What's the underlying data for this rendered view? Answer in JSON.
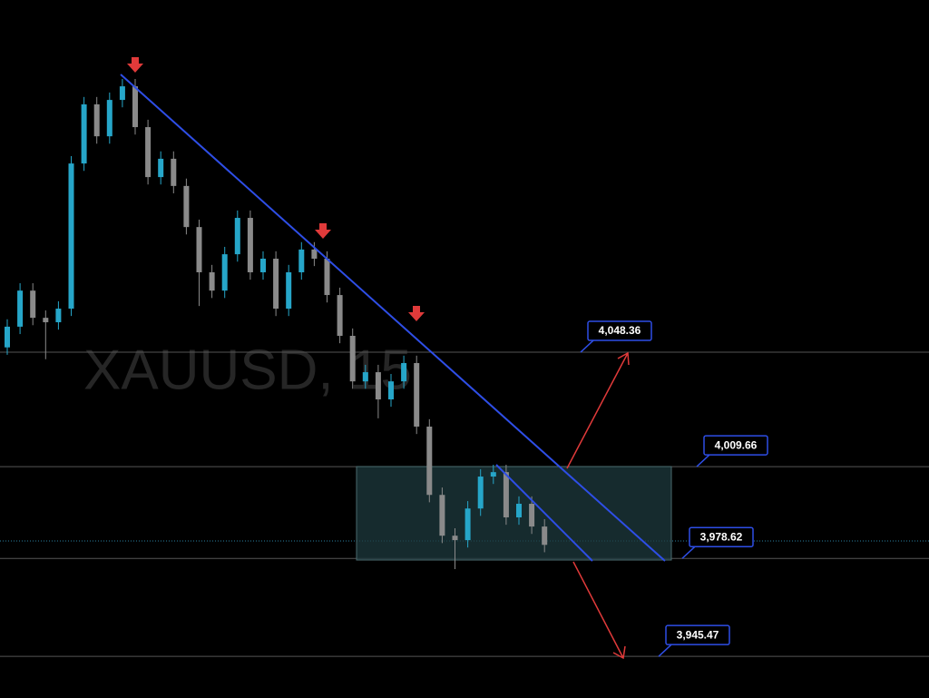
{
  "chart_data": {
    "type": "candlestick",
    "watermark": "XAUUSD, 15",
    "up_color": "#26a6c9",
    "down_color": "#8a8a8a",
    "ylim": [
      3931.4,
      4167.5
    ],
    "open": [
      4050.0,
      4057.0,
      4069.2,
      4060.0,
      4058.5,
      4063.1,
      4112.2,
      4132.2,
      4121.4,
      4133.7,
      4138.3,
      4124.5,
      4107.6,
      4113.8,
      4104.6,
      4090.7,
      4075.4,
      4069.2,
      4081.5,
      4093.8,
      4075.4,
      4080.0,
      4063.1,
      4075.4,
      4083.1,
      4080.0,
      4067.7,
      4053.9,
      4038.5,
      4041.6,
      4032.4,
      4038.5,
      4044.7,
      4023.2,
      4000.1,
      3986.3,
      3984.8,
      3995.5,
      4006.3,
      4007.8,
      3992.5,
      3997.1,
      3989.4
    ],
    "high": [
      4059.5,
      4071.7,
      4071.7,
      4062.5,
      4065.6,
      4114.7,
      4134.7,
      4134.7,
      4136.2,
      4140.8,
      4140.8,
      4127.0,
      4116.3,
      4116.3,
      4107.1,
      4093.2,
      4077.9,
      4084.0,
      4096.3,
      4096.3,
      4082.5,
      4082.5,
      4077.9,
      4085.6,
      4085.6,
      4082.5,
      4070.2,
      4056.4,
      4044.1,
      4044.1,
      4041.0,
      4047.2,
      4047.2,
      4025.7,
      4002.6,
      3988.8,
      3998.0,
      4008.8,
      4010.3,
      4010.3,
      3999.6,
      3999.6,
      3991.9
    ],
    "low": [
      4047.5,
      4054.5,
      4057.5,
      4046.0,
      4056.0,
      4060.6,
      4109.7,
      4118.9,
      4118.9,
      4131.2,
      4122.0,
      4105.1,
      4105.1,
      4102.1,
      4088.2,
      4064.0,
      4066.7,
      4066.7,
      4079.0,
      4072.9,
      4072.9,
      4060.6,
      4060.6,
      4072.9,
      4077.5,
      4065.2,
      4051.4,
      4036.0,
      4036.0,
      4026.0,
      4029.9,
      4036.0,
      4020.7,
      3997.6,
      3983.8,
      3975.0,
      3982.3,
      3993.0,
      4003.8,
      3990.0,
      3990.0,
      3986.9,
      3980.7
    ],
    "close": [
      4057.0,
      4069.2,
      4060.0,
      4058.5,
      4063.1,
      4112.2,
      4132.2,
      4121.4,
      4133.7,
      4138.3,
      4124.5,
      4107.6,
      4113.8,
      4104.6,
      4090.7,
      4075.4,
      4069.2,
      4081.5,
      4093.8,
      4075.4,
      4080.0,
      4063.1,
      4075.4,
      4083.1,
      4080.0,
      4067.7,
      4053.9,
      4038.5,
      4041.6,
      4032.4,
      4038.5,
      4044.7,
      4023.2,
      4000.1,
      3986.3,
      3984.8,
      3995.5,
      4006.3,
      4007.8,
      3992.5,
      3997.1,
      3989.4,
      3983.2
    ],
    "current_price": 3984.5,
    "levels": [
      {
        "value": 4048.36,
        "label": "4,048.36"
      },
      {
        "value": 4009.66,
        "label": "4,009.66"
      },
      {
        "value": 3978.62,
        "label": "3,978.62"
      },
      {
        "value": 3945.47,
        "label": "3,945.47"
      }
    ]
  }
}
